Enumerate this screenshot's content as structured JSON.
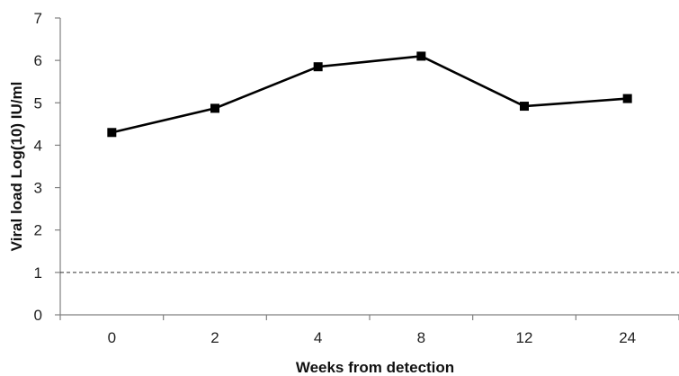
{
  "chart_data": {
    "type": "line",
    "title": "",
    "xlabel": "Weeks from detection",
    "ylabel": "Viral load Log(10) IU/ml",
    "categories": [
      "0",
      "2",
      "4",
      "8",
      "12",
      "24"
    ],
    "series": [
      {
        "values": [
          4.3,
          4.87,
          5.85,
          6.1,
          4.92,
          5.1
        ]
      }
    ],
    "ylim": [
      0,
      7
    ],
    "yticks": [
      0,
      1,
      2,
      3,
      4,
      5,
      6,
      7
    ],
    "reference_line": {
      "y": 1,
      "style": "dashed"
    },
    "grid": false,
    "legend": "none",
    "colors": {
      "line": "#000000",
      "axis": "#808080"
    }
  }
}
